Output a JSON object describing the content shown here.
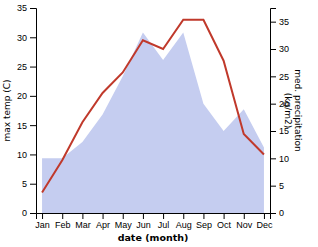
{
  "chart_data": {
    "type": "line",
    "categories": [
      "Jan",
      "Feb",
      "Mar",
      "Apr",
      "May",
      "Jun",
      "Jul",
      "Aug",
      "Sep",
      "Oct",
      "Nov",
      "Dec"
    ],
    "series": [
      {
        "type": "area",
        "axis": "y2",
        "color": "#c5cdf0",
        "values": [
          10,
          10,
          13,
          18,
          25,
          33,
          28,
          33,
          20,
          15,
          19,
          12
        ]
      },
      {
        "type": "line",
        "axis": "y",
        "color": "#c0392b",
        "values": [
          3.5,
          9.0,
          15.5,
          20.5,
          24.0,
          29.5,
          28.0,
          33.0,
          33.0,
          26.0,
          13.5,
          10.0
        ]
      }
    ],
    "xlabel": "date (month)",
    "ylabel": "max temp (C)",
    "y2label": "med. precipitation\n(kg/m2)",
    "ylim": [
      0,
      35
    ],
    "yticks": [
      0,
      5,
      10,
      15,
      20,
      25,
      30,
      35
    ],
    "y2lim": [
      0,
      37.5
    ],
    "y2ticks": [
      0,
      5,
      10,
      15,
      20,
      25,
      30,
      35
    ],
    "grid": false
  }
}
